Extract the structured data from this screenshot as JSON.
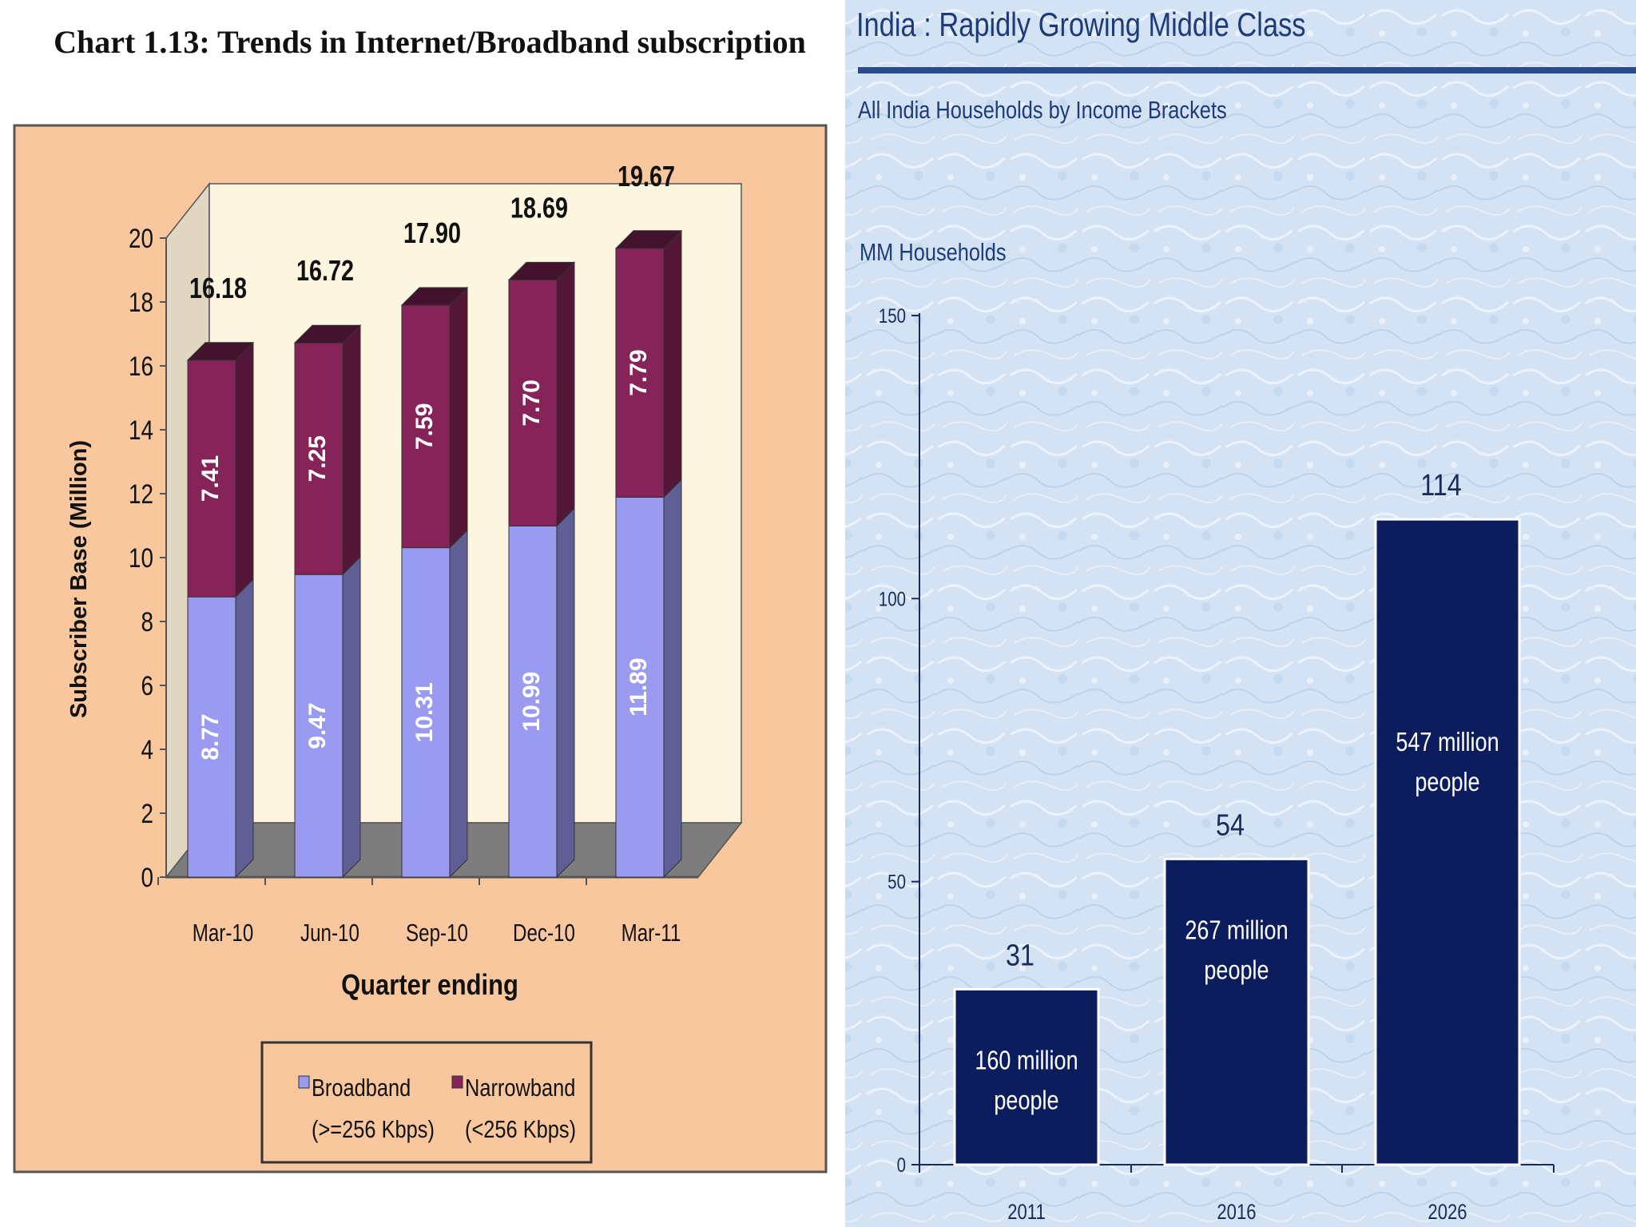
{
  "chart_data": [
    {
      "type": "bar",
      "stacked": true,
      "three_d": true,
      "title": "Chart 1.13: Trends in Internet/Broadband subscription",
      "xlabel": "Quarter ending",
      "ylabel": "Subscriber Base (Million)",
      "ylim": [
        0,
        20
      ],
      "yticks": [
        "0",
        "2",
        "4",
        "6",
        "8",
        "10",
        "12",
        "14",
        "16",
        "18",
        "20"
      ],
      "categories": [
        "Mar-10",
        "Jun-10",
        "Sep-10",
        "Dec-10",
        "Mar-11"
      ],
      "series": [
        {
          "name": "Broadband",
          "legend_line1": "Broadband",
          "legend_line2": "(>=256 Kbps)",
          "values": [
            8.77,
            9.47,
            10.31,
            10.99,
            11.89
          ],
          "labels": [
            "8.77",
            "9.47",
            "10.31",
            "10.99",
            "11.89"
          ],
          "color": "#9a9af0"
        },
        {
          "name": "Narrowband",
          "legend_line1": "Narrowband",
          "legend_line2": "(<256 Kbps)",
          "values": [
            7.41,
            7.25,
            7.59,
            7.7,
            7.79
          ],
          "labels": [
            "7.41",
            "7.25",
            "7.59",
            "7.70",
            "7.79"
          ],
          "color": "#862358"
        }
      ],
      "totals": [
        16.18,
        16.72,
        17.9,
        18.69,
        19.67
      ],
      "total_labels": [
        "16.18",
        "16.72",
        "17.90",
        "18.69",
        "19.67"
      ],
      "legend_position": "bottom-center",
      "colors": {
        "background": "#f9c79d",
        "wall": "#fcf5e0",
        "floor": "#7d7d7d",
        "text": "#111111"
      }
    },
    {
      "type": "bar",
      "title": "India : Rapidly Growing Middle Class",
      "subtitle": "All India Households by Income Brackets",
      "ylabel": "MM Households",
      "xlabel": "",
      "ylim": [
        0,
        150
      ],
      "yticks": [
        "0",
        "50",
        "100",
        "150"
      ],
      "categories": [
        "2011",
        "2016",
        "2026"
      ],
      "values": [
        31,
        54,
        114
      ],
      "value_labels": [
        "31",
        "54",
        "114"
      ],
      "annotations": [
        [
          "160 million",
          "people"
        ],
        [
          "267 million",
          "people"
        ],
        [
          "547 million",
          "people"
        ]
      ],
      "colors": {
        "bar": "#0b1d5c",
        "background": "#d4e4f4",
        "title": "#1e3a78",
        "axis": "#1a2b5a"
      }
    }
  ]
}
